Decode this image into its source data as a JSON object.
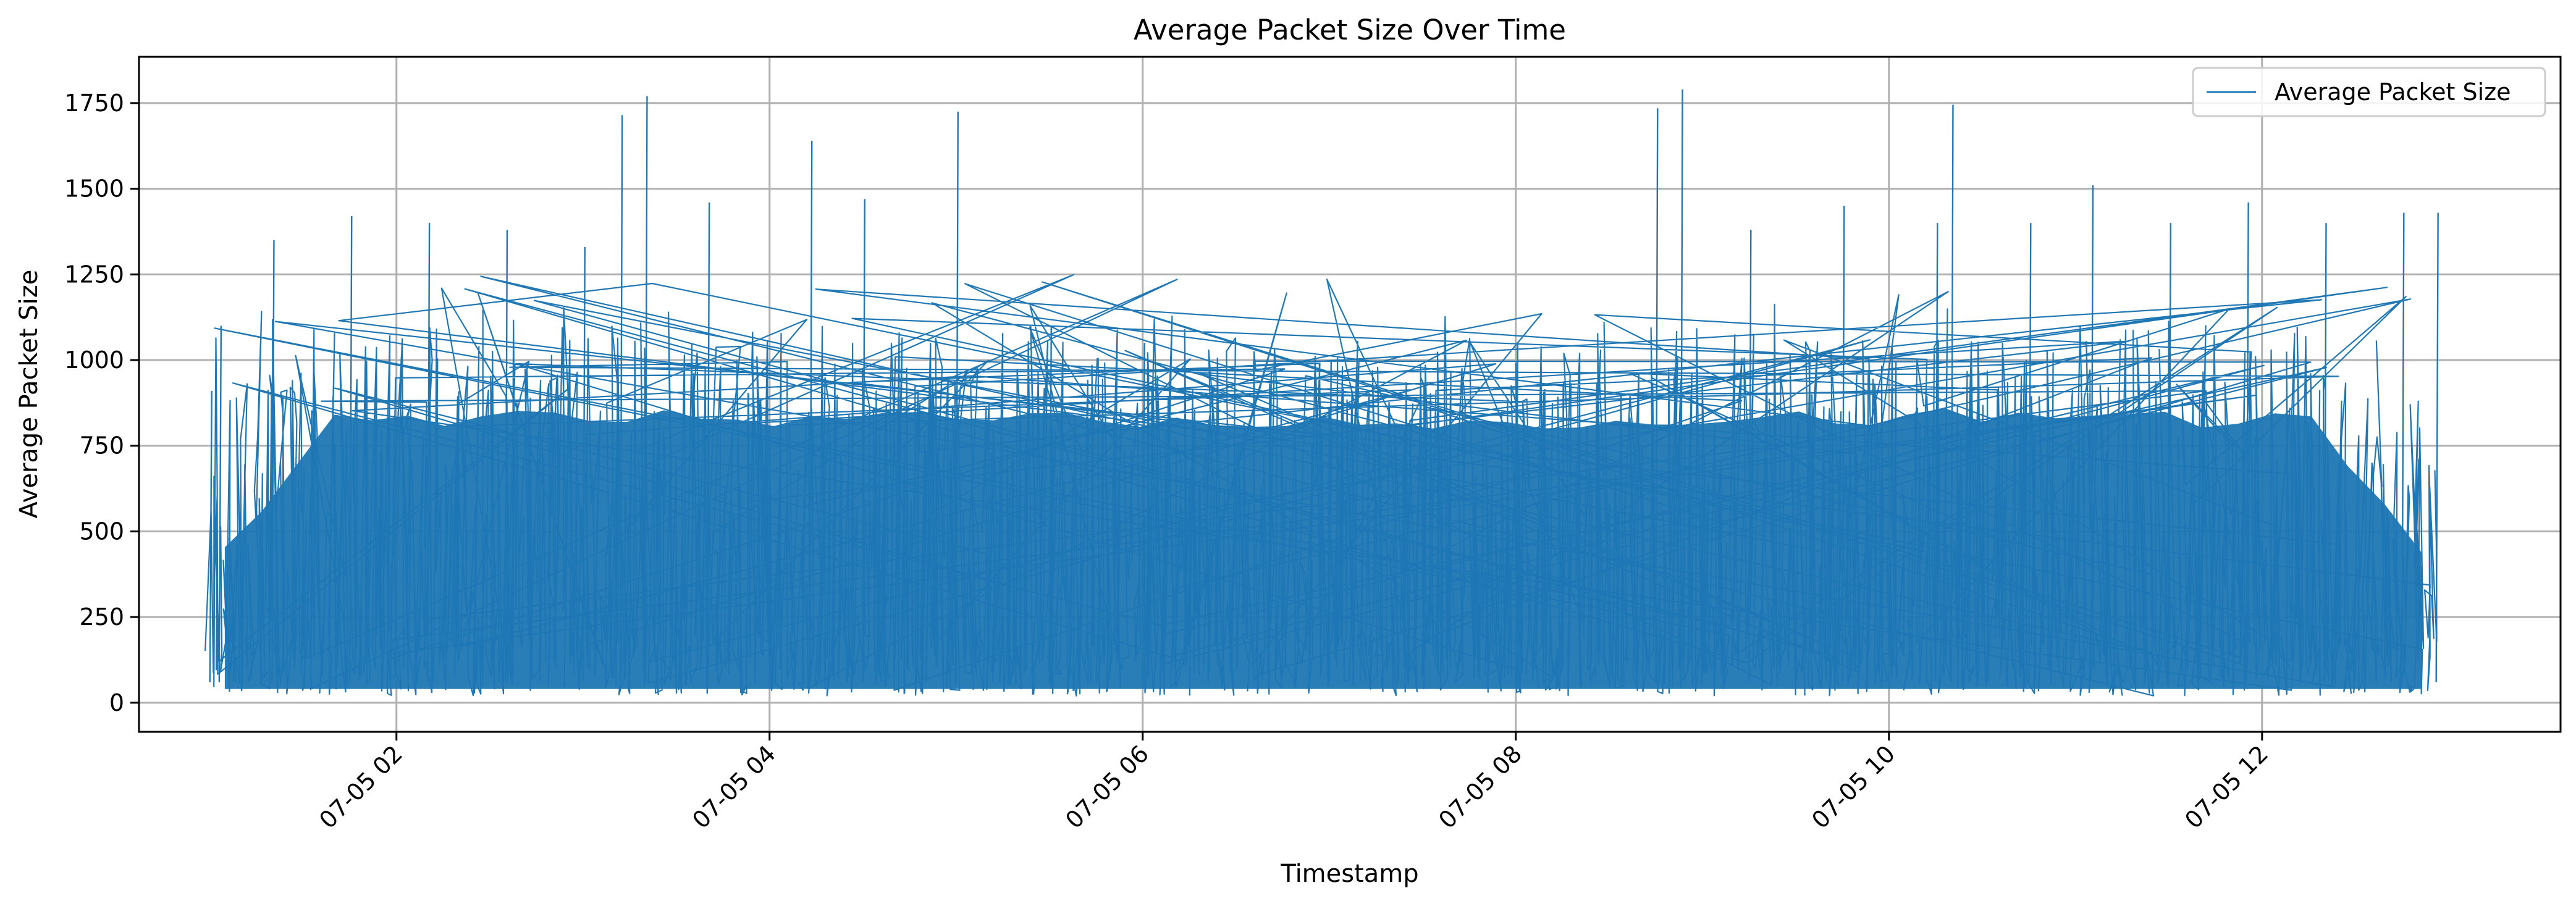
{
  "chart_data": {
    "type": "line",
    "title": "Average Packet Size Over Time",
    "xlabel": "Timestamp",
    "ylabel": "Average Packet Size",
    "x_range": [
      "07-05 00:57",
      "07-05 13:35"
    ],
    "xlim_hours": [
      0.62,
      13.6
    ],
    "ylim": [
      -85,
      1885
    ],
    "y_ticks": [
      0,
      250,
      500,
      750,
      1000,
      1250,
      1500,
      1750
    ],
    "y_tick_labels": [
      "0",
      "250",
      "500",
      "750",
      "1000",
      "1250",
      "1500",
      "1750"
    ],
    "x_ticks": [
      "07-05 02",
      "07-05 04",
      "07-05 06",
      "07-05 08",
      "07-05 10",
      "07-05 12"
    ],
    "grid": true,
    "legend_position": "top-right",
    "color": "#1f77b4",
    "series": [
      {
        "name": "Average Packet Size",
        "x": [
          "07-05 01:00",
          "07-05 01:03",
          "07-05 01:20",
          "07-05 01:45",
          "07-05 02:10",
          "07-05 02:35",
          "07-05 03:00",
          "07-05 03:12",
          "07-05 03:20",
          "07-05 03:40",
          "07-05 04:13",
          "07-05 04:30",
          "07-05 05:00",
          "07-05 05:30",
          "07-05 06:00",
          "07-05 07:00",
          "07-05 08:00",
          "07-05 08:45",
          "07-05 08:53",
          "07-05 09:15",
          "07-05 09:45",
          "07-05 10:15",
          "07-05 10:20",
          "07-05 10:45",
          "07-05 11:05",
          "07-05 11:30",
          "07-05 11:55",
          "07-05 12:20",
          "07-05 12:45",
          "07-05 12:56"
        ],
        "y": [
          910,
          1100,
          1350,
          1420,
          1400,
          1380,
          1330,
          1715,
          1770,
          1460,
          1640,
          1470,
          1725,
          1100,
          1050,
          1000,
          1050,
          1735,
          1790,
          1380,
          1450,
          1400,
          1745,
          1400,
          1510,
          1400,
          1460,
          1400,
          1430,
          1430
        ]
      }
    ]
  }
}
